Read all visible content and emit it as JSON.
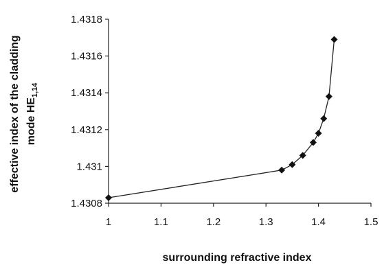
{
  "chart_data": {
    "type": "line",
    "title": "",
    "xlabel": "surrounding refractive index",
    "ylabel_line1": "effective index of the cladding",
    "ylabel_line2_main": "mode HE",
    "ylabel_line2_sub": "1,14",
    "xlim": [
      1,
      1.5
    ],
    "ylim": [
      1.4308,
      1.4318
    ],
    "x_ticks": [
      1,
      1.1,
      1.2,
      1.3,
      1.4,
      1.5
    ],
    "x_tick_labels": [
      "1",
      "1.1",
      "1.2",
      "1.3",
      "1.4",
      "1.5"
    ],
    "y_ticks": [
      1.4308,
      1.431,
      1.4312,
      1.4314,
      1.4316,
      1.4318
    ],
    "y_tick_labels": [
      "1.4308",
      "1.431",
      "1.4312",
      "1.4314",
      "1.4316",
      "1.4318"
    ],
    "grid": false,
    "marker": "diamond",
    "line_color": "#222222",
    "series": [
      {
        "x": [
          1.0,
          1.33,
          1.35,
          1.37,
          1.39,
          1.4,
          1.41,
          1.42,
          1.43
        ],
        "y": [
          1.43083,
          1.43098,
          1.43101,
          1.43106,
          1.43113,
          1.43118,
          1.43126,
          1.43138,
          1.43169
        ]
      }
    ]
  }
}
